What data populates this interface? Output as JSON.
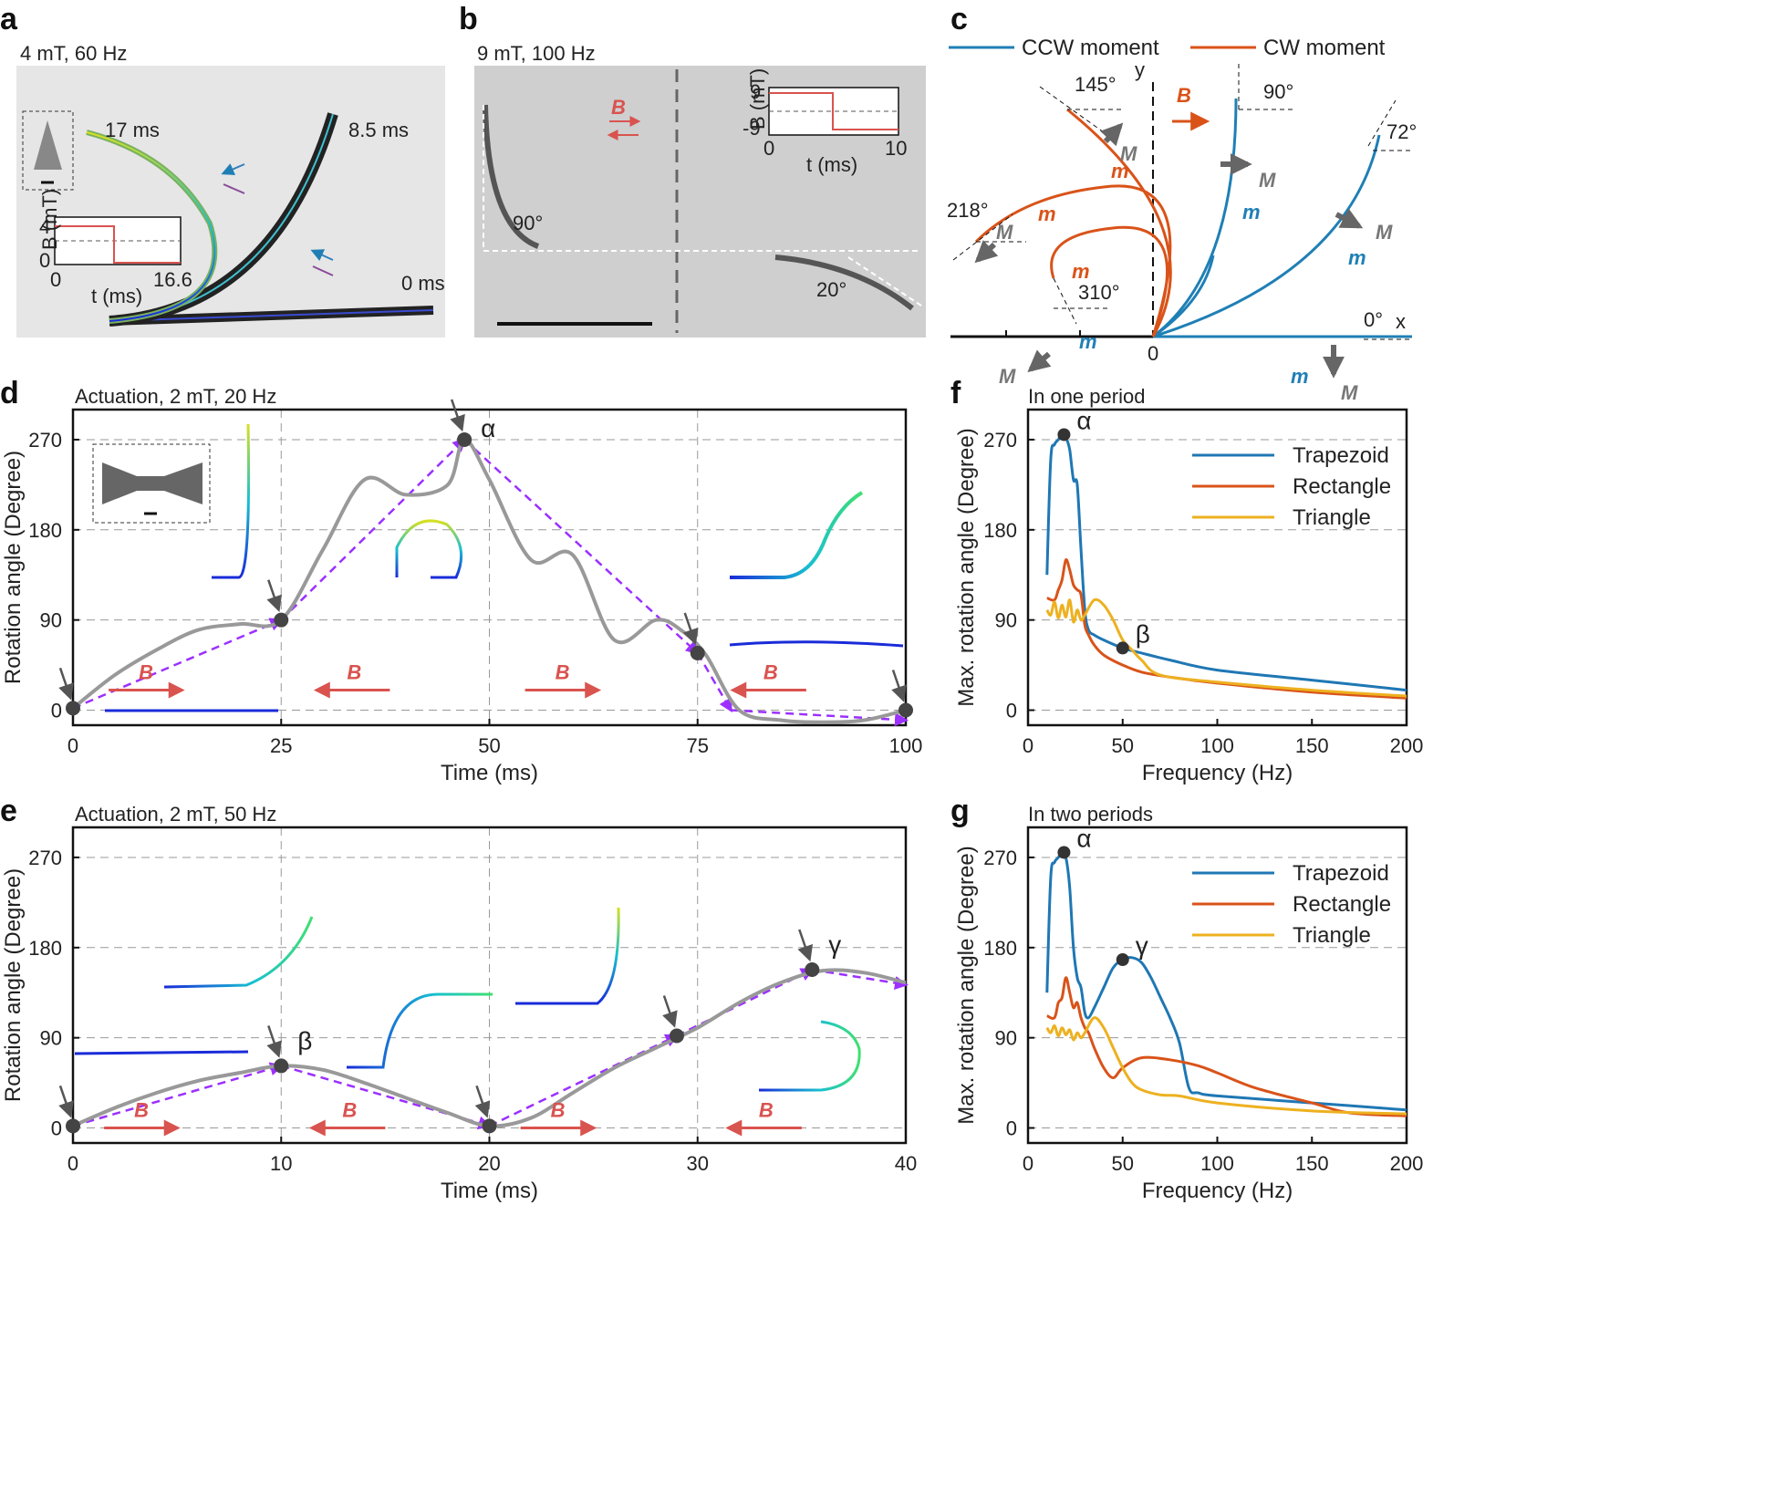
{
  "panels": {
    "a": {
      "letter": "a",
      "title": "4 mT, 60 Hz",
      "times": [
        "17 ms",
        "8.5 ms",
        "0 ms"
      ],
      "inset": {
        "ylabel": "B (mT)",
        "xlabel": "t (ms)",
        "ymax": "4",
        "ymin": "0",
        "xmin": "0",
        "xmax": "16.6"
      }
    },
    "b": {
      "letter": "b",
      "title": "9 mT, 100 Hz",
      "field": "B",
      "angle_left": "90°",
      "angle_right": "20°",
      "inset": {
        "ylabel": "B (mT)",
        "xlabel": "t (ms)",
        "ymax": "9",
        "ymin": "-9",
        "xmin": "0",
        "xmax": "10"
      }
    },
    "c": {
      "letter": "c",
      "legend_ccw": "CCW moment",
      "legend_cw": "CW moment",
      "angles": [
        "145°",
        "90°",
        "72°",
        "218°",
        "310°",
        "0°"
      ],
      "axis_x": "x",
      "axis_y": "y",
      "origin": "0",
      "field": "B",
      "moment_M": "M",
      "moment_m": "m"
    },
    "d": {
      "letter": "d",
      "title": "Actuation, 2 mT, 20  Hz",
      "marker": "α",
      "field": "B"
    },
    "e": {
      "letter": "e",
      "title": "Actuation, 2 mT, 50 Hz",
      "markers": [
        "β",
        "γ"
      ],
      "field": "B"
    },
    "f": {
      "letter": "f",
      "title": "In one period",
      "markers": [
        "α",
        "β"
      ]
    },
    "g": {
      "letter": "g",
      "title": "In two periods",
      "markers": [
        "α",
        "γ"
      ]
    }
  },
  "colors": {
    "trapezoid": "#1f77b4",
    "rectangle": "#d95319",
    "triangle": "#edb120",
    "trace": "#999999",
    "guide": "#9b30ff",
    "field": "#d9534f",
    "ccw": "#1f7fb5",
    "cw": "#d95319"
  },
  "chart_data": [
    {
      "id": "d",
      "type": "line",
      "title": "Actuation, 2 mT, 20  Hz",
      "xlabel": "Time (ms)",
      "ylabel": "Rotation angle (Degree)",
      "xlim": [
        0,
        100
      ],
      "ylim": [
        -15,
        300
      ],
      "xticks": [
        0,
        25,
        50,
        75,
        100
      ],
      "yticks": [
        0,
        90,
        180,
        270
      ],
      "series": [
        {
          "name": "rotation",
          "x": [
            0,
            5,
            10,
            15,
            20,
            25,
            30,
            35,
            40,
            45,
            47,
            50,
            55,
            60,
            65,
            70,
            73,
            76,
            80,
            85,
            90,
            95,
            100
          ],
          "y": [
            2,
            35,
            60,
            80,
            86,
            90,
            160,
            230,
            215,
            225,
            270,
            230,
            150,
            155,
            70,
            90,
            80,
            55,
            0,
            -10,
            -12,
            -10,
            0
          ]
        },
        {
          "name": "guide",
          "x": [
            0,
            25,
            47,
            75,
            79,
            100
          ],
          "y": [
            2,
            90,
            270,
            57,
            0,
            -10
          ]
        }
      ],
      "points": [
        {
          "x": 0,
          "y": 2
        },
        {
          "x": 25,
          "y": 90
        },
        {
          "x": 47,
          "y": 270,
          "label": "α"
        },
        {
          "x": 75,
          "y": 57
        },
        {
          "x": 100,
          "y": 0
        }
      ],
      "field_arrows": [
        "right",
        "left",
        "right",
        "left"
      ]
    },
    {
      "id": "e",
      "type": "line",
      "title": "Actuation, 2 mT, 50 Hz",
      "xlabel": "Time (ms)",
      "ylabel": "Rotation angle (Degree)",
      "xlim": [
        0,
        40
      ],
      "ylim": [
        -15,
        300
      ],
      "xticks": [
        0,
        10,
        20,
        30,
        40
      ],
      "yticks": [
        0,
        90,
        180,
        270
      ],
      "series": [
        {
          "name": "rotation",
          "x": [
            0,
            2,
            4,
            6,
            8,
            10,
            12,
            14,
            16,
            18,
            20,
            22,
            24,
            26,
            28,
            30,
            32,
            34,
            36,
            38,
            40
          ],
          "y": [
            2,
            20,
            35,
            47,
            55,
            62,
            58,
            45,
            30,
            15,
            2,
            10,
            35,
            60,
            80,
            100,
            125,
            145,
            157,
            155,
            145
          ]
        },
        {
          "name": "guide",
          "x": [
            0,
            10,
            20,
            29,
            35.5,
            40
          ],
          "y": [
            2,
            62,
            2,
            92,
            158,
            143
          ]
        }
      ],
      "points": [
        {
          "x": 0,
          "y": 2
        },
        {
          "x": 10,
          "y": 62,
          "label": "β"
        },
        {
          "x": 20,
          "y": 2
        },
        {
          "x": 29,
          "y": 92
        },
        {
          "x": 35.5,
          "y": 158,
          "label": "γ"
        }
      ],
      "field_arrows": [
        "right",
        "left",
        "right",
        "left"
      ]
    },
    {
      "id": "f",
      "type": "line",
      "title": "In one period",
      "xlabel": "Frequency (Hz)",
      "ylabel": "Max. rotation angle (Degree)",
      "xlim": [
        0,
        200
      ],
      "ylim": [
        -15,
        300
      ],
      "xticks": [
        0,
        50,
        100,
        150,
        200
      ],
      "yticks": [
        0,
        90,
        180,
        270
      ],
      "legend": [
        "Trapezoid",
        "Rectangle",
        "Triangle"
      ],
      "series": [
        {
          "name": "Trapezoid",
          "x": [
            10,
            12,
            14,
            16,
            18,
            20,
            22,
            24,
            26,
            28,
            30,
            32,
            35,
            40,
            50,
            60,
            75,
            100,
            150,
            200
          ],
          "y": [
            135,
            250,
            265,
            270,
            275,
            272,
            260,
            230,
            225,
            160,
            100,
            80,
            75,
            70,
            62,
            57,
            50,
            40,
            30,
            20
          ]
        },
        {
          "name": "Rectangle",
          "x": [
            10,
            14,
            16,
            18,
            20,
            22,
            24,
            26,
            28,
            30,
            32,
            35,
            40,
            50,
            60,
            75,
            100,
            150,
            200
          ],
          "y": [
            112,
            110,
            120,
            130,
            150,
            140,
            125,
            120,
            115,
            85,
            75,
            65,
            55,
            45,
            38,
            33,
            27,
            18,
            12
          ]
        },
        {
          "name": "Triangle",
          "x": [
            10,
            12,
            14,
            16,
            18,
            20,
            22,
            24,
            26,
            28,
            30,
            35,
            40,
            45,
            50,
            55,
            60,
            70,
            100,
            150,
            200
          ],
          "y": [
            100,
            95,
            108,
            92,
            105,
            93,
            110,
            88,
            100,
            90,
            95,
            110,
            105,
            90,
            70,
            60,
            50,
            35,
            28,
            20,
            14
          ]
        }
      ],
      "points": [
        {
          "x": 19,
          "y": 275,
          "label": "α"
        },
        {
          "x": 50,
          "y": 62,
          "label": "β"
        }
      ]
    },
    {
      "id": "g",
      "type": "line",
      "title": "In two periods",
      "xlabel": "Frequency (Hz)",
      "ylabel": "Max. rotation angle (Degree)",
      "xlim": [
        0,
        200
      ],
      "ylim": [
        -15,
        300
      ],
      "xticks": [
        0,
        50,
        100,
        150,
        200
      ],
      "yticks": [
        0,
        90,
        180,
        270
      ],
      "legend": [
        "Trapezoid",
        "Rectangle",
        "Triangle"
      ],
      "series": [
        {
          "name": "Trapezoid",
          "x": [
            10,
            12,
            14,
            16,
            18,
            20,
            22,
            24,
            26,
            28,
            30,
            32,
            35,
            40,
            45,
            50,
            55,
            60,
            65,
            70,
            75,
            80,
            85,
            90,
            100,
            150,
            200
          ],
          "y": [
            135,
            250,
            265,
            270,
            275,
            270,
            240,
            180,
            150,
            140,
            115,
            110,
            120,
            140,
            160,
            168,
            170,
            165,
            150,
            130,
            110,
            85,
            40,
            35,
            32,
            25,
            18
          ]
        },
        {
          "name": "Rectangle",
          "x": [
            10,
            14,
            16,
            18,
            20,
            22,
            24,
            26,
            28,
            30,
            32,
            35,
            40,
            45,
            50,
            60,
            75,
            90,
            100,
            120,
            150,
            170,
            200
          ],
          "y": [
            112,
            110,
            125,
            130,
            150,
            135,
            120,
            125,
            110,
            100,
            95,
            80,
            60,
            50,
            60,
            70,
            68,
            62,
            55,
            40,
            25,
            15,
            12
          ]
        },
        {
          "name": "Triangle",
          "x": [
            10,
            12,
            14,
            16,
            18,
            20,
            22,
            24,
            26,
            28,
            30,
            35,
            40,
            45,
            50,
            55,
            60,
            70,
            80,
            100,
            150,
            200
          ],
          "y": [
            100,
            95,
            102,
            92,
            100,
            93,
            98,
            88,
            95,
            90,
            95,
            110,
            100,
            80,
            60,
            45,
            38,
            33,
            32,
            25,
            17,
            14
          ]
        }
      ],
      "points": [
        {
          "x": 19,
          "y": 275,
          "label": "α"
        },
        {
          "x": 50,
          "y": 168,
          "label": "γ"
        }
      ]
    }
  ]
}
